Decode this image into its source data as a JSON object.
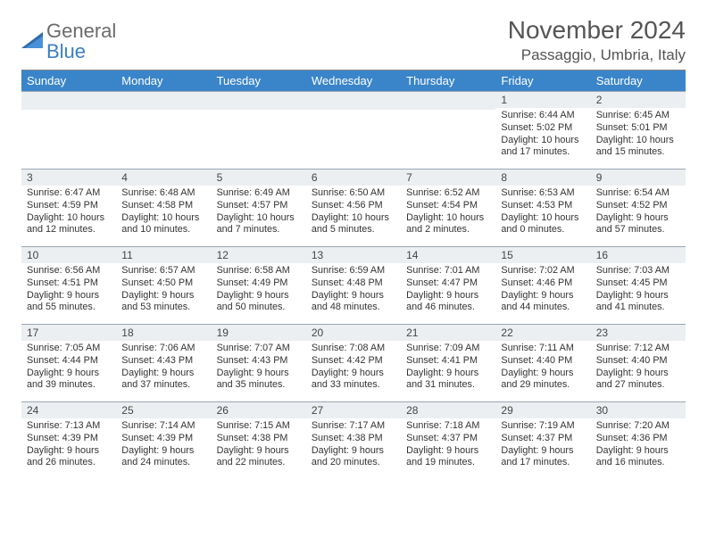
{
  "logo": {
    "part1": "General",
    "part2": "Blue"
  },
  "title": "November 2024",
  "location": "Passaggio, Umbria, Italy",
  "headers_color": "#3a85c9",
  "daynum_bg": "#eceff1",
  "border_color": "#9aa7b3",
  "dayNames": [
    "Sunday",
    "Monday",
    "Tuesday",
    "Wednesday",
    "Thursday",
    "Friday",
    "Saturday"
  ],
  "weeks": [
    [
      {
        "n": "",
        "sr": "",
        "ss": "",
        "dl": ""
      },
      {
        "n": "",
        "sr": "",
        "ss": "",
        "dl": ""
      },
      {
        "n": "",
        "sr": "",
        "ss": "",
        "dl": ""
      },
      {
        "n": "",
        "sr": "",
        "ss": "",
        "dl": ""
      },
      {
        "n": "",
        "sr": "",
        "ss": "",
        "dl": ""
      },
      {
        "n": "1",
        "sr": "Sunrise: 6:44 AM",
        "ss": "Sunset: 5:02 PM",
        "dl": "Daylight: 10 hours and 17 minutes."
      },
      {
        "n": "2",
        "sr": "Sunrise: 6:45 AM",
        "ss": "Sunset: 5:01 PM",
        "dl": "Daylight: 10 hours and 15 minutes."
      }
    ],
    [
      {
        "n": "3",
        "sr": "Sunrise: 6:47 AM",
        "ss": "Sunset: 4:59 PM",
        "dl": "Daylight: 10 hours and 12 minutes."
      },
      {
        "n": "4",
        "sr": "Sunrise: 6:48 AM",
        "ss": "Sunset: 4:58 PM",
        "dl": "Daylight: 10 hours and 10 minutes."
      },
      {
        "n": "5",
        "sr": "Sunrise: 6:49 AM",
        "ss": "Sunset: 4:57 PM",
        "dl": "Daylight: 10 hours and 7 minutes."
      },
      {
        "n": "6",
        "sr": "Sunrise: 6:50 AM",
        "ss": "Sunset: 4:56 PM",
        "dl": "Daylight: 10 hours and 5 minutes."
      },
      {
        "n": "7",
        "sr": "Sunrise: 6:52 AM",
        "ss": "Sunset: 4:54 PM",
        "dl": "Daylight: 10 hours and 2 minutes."
      },
      {
        "n": "8",
        "sr": "Sunrise: 6:53 AM",
        "ss": "Sunset: 4:53 PM",
        "dl": "Daylight: 10 hours and 0 minutes."
      },
      {
        "n": "9",
        "sr": "Sunrise: 6:54 AM",
        "ss": "Sunset: 4:52 PM",
        "dl": "Daylight: 9 hours and 57 minutes."
      }
    ],
    [
      {
        "n": "10",
        "sr": "Sunrise: 6:56 AM",
        "ss": "Sunset: 4:51 PM",
        "dl": "Daylight: 9 hours and 55 minutes."
      },
      {
        "n": "11",
        "sr": "Sunrise: 6:57 AM",
        "ss": "Sunset: 4:50 PM",
        "dl": "Daylight: 9 hours and 53 minutes."
      },
      {
        "n": "12",
        "sr": "Sunrise: 6:58 AM",
        "ss": "Sunset: 4:49 PM",
        "dl": "Daylight: 9 hours and 50 minutes."
      },
      {
        "n": "13",
        "sr": "Sunrise: 6:59 AM",
        "ss": "Sunset: 4:48 PM",
        "dl": "Daylight: 9 hours and 48 minutes."
      },
      {
        "n": "14",
        "sr": "Sunrise: 7:01 AM",
        "ss": "Sunset: 4:47 PM",
        "dl": "Daylight: 9 hours and 46 minutes."
      },
      {
        "n": "15",
        "sr": "Sunrise: 7:02 AM",
        "ss": "Sunset: 4:46 PM",
        "dl": "Daylight: 9 hours and 44 minutes."
      },
      {
        "n": "16",
        "sr": "Sunrise: 7:03 AM",
        "ss": "Sunset: 4:45 PM",
        "dl": "Daylight: 9 hours and 41 minutes."
      }
    ],
    [
      {
        "n": "17",
        "sr": "Sunrise: 7:05 AM",
        "ss": "Sunset: 4:44 PM",
        "dl": "Daylight: 9 hours and 39 minutes."
      },
      {
        "n": "18",
        "sr": "Sunrise: 7:06 AM",
        "ss": "Sunset: 4:43 PM",
        "dl": "Daylight: 9 hours and 37 minutes."
      },
      {
        "n": "19",
        "sr": "Sunrise: 7:07 AM",
        "ss": "Sunset: 4:43 PM",
        "dl": "Daylight: 9 hours and 35 minutes."
      },
      {
        "n": "20",
        "sr": "Sunrise: 7:08 AM",
        "ss": "Sunset: 4:42 PM",
        "dl": "Daylight: 9 hours and 33 minutes."
      },
      {
        "n": "21",
        "sr": "Sunrise: 7:09 AM",
        "ss": "Sunset: 4:41 PM",
        "dl": "Daylight: 9 hours and 31 minutes."
      },
      {
        "n": "22",
        "sr": "Sunrise: 7:11 AM",
        "ss": "Sunset: 4:40 PM",
        "dl": "Daylight: 9 hours and 29 minutes."
      },
      {
        "n": "23",
        "sr": "Sunrise: 7:12 AM",
        "ss": "Sunset: 4:40 PM",
        "dl": "Daylight: 9 hours and 27 minutes."
      }
    ],
    [
      {
        "n": "24",
        "sr": "Sunrise: 7:13 AM",
        "ss": "Sunset: 4:39 PM",
        "dl": "Daylight: 9 hours and 26 minutes."
      },
      {
        "n": "25",
        "sr": "Sunrise: 7:14 AM",
        "ss": "Sunset: 4:39 PM",
        "dl": "Daylight: 9 hours and 24 minutes."
      },
      {
        "n": "26",
        "sr": "Sunrise: 7:15 AM",
        "ss": "Sunset: 4:38 PM",
        "dl": "Daylight: 9 hours and 22 minutes."
      },
      {
        "n": "27",
        "sr": "Sunrise: 7:17 AM",
        "ss": "Sunset: 4:38 PM",
        "dl": "Daylight: 9 hours and 20 minutes."
      },
      {
        "n": "28",
        "sr": "Sunrise: 7:18 AM",
        "ss": "Sunset: 4:37 PM",
        "dl": "Daylight: 9 hours and 19 minutes."
      },
      {
        "n": "29",
        "sr": "Sunrise: 7:19 AM",
        "ss": "Sunset: 4:37 PM",
        "dl": "Daylight: 9 hours and 17 minutes."
      },
      {
        "n": "30",
        "sr": "Sunrise: 7:20 AM",
        "ss": "Sunset: 4:36 PM",
        "dl": "Daylight: 9 hours and 16 minutes."
      }
    ]
  ]
}
